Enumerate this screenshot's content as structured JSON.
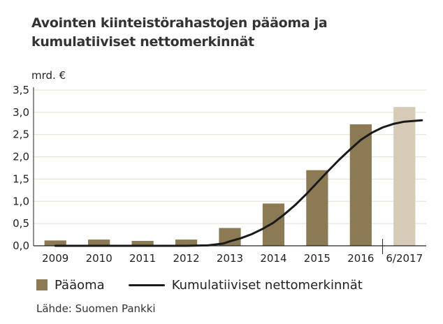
{
  "chart_data": {
    "type": "bar",
    "title": "Avointen kiinteistörahastojen pääoma ja kumulatiiviset nettomerkinnät",
    "unit_label": "mrd. €",
    "categories": [
      "2009",
      "2010",
      "2011",
      "2012",
      "2013",
      "2014",
      "2015",
      "2016",
      "6/2017"
    ],
    "y_ticks": [
      "0,0",
      "0,5",
      "1,0",
      "1,5",
      "2,0",
      "2,5",
      "3,0",
      "3,5"
    ],
    "ylim": [
      0,
      3.5
    ],
    "grid": true,
    "series": [
      {
        "name": "Pääoma",
        "type": "bar",
        "values": [
          0.12,
          0.14,
          0.11,
          0.14,
          0.4,
          0.95,
          1.7,
          2.73,
          3.12
        ],
        "colors": [
          "#8b7a53",
          "#8b7a53",
          "#8b7a53",
          "#8b7a53",
          "#8b7a53",
          "#8b7a53",
          "#8b7a53",
          "#8b7a53",
          "#d6cbb7"
        ]
      },
      {
        "name": "Kumulatiiviset nettomerkinnät",
        "type": "line",
        "color": "#1a1a1a",
        "x": [
          2009.0,
          2009.5,
          2010.0,
          2010.5,
          2011.0,
          2011.5,
          2012.0,
          2012.5,
          2012.85,
          2013.0,
          2013.25,
          2013.5,
          2013.75,
          2014.0,
          2014.25,
          2014.5,
          2014.75,
          2015.0,
          2015.25,
          2015.5,
          2015.75,
          2016.0,
          2016.25,
          2016.5,
          2016.75,
          2017.0,
          2017.4
        ],
        "y": [
          0.0,
          0.0,
          0.0,
          0.0,
          0.0,
          0.0,
          0.0,
          0.01,
          0.05,
          0.1,
          0.17,
          0.26,
          0.38,
          0.52,
          0.71,
          0.92,
          1.16,
          1.42,
          1.68,
          1.93,
          2.16,
          2.38,
          2.54,
          2.66,
          2.74,
          2.79,
          2.82
        ]
      }
    ],
    "legend_position": "bottom-left",
    "source": "Lähde: Suomen Pankki"
  }
}
